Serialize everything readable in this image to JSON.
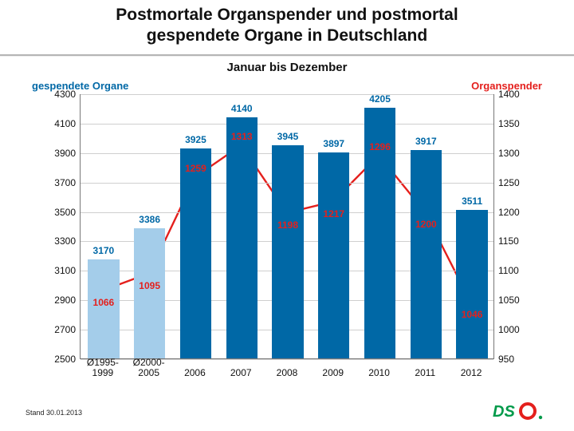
{
  "title": {
    "line1": "Postmortale Organspender und postmortal",
    "line2": "gespendete Organe in Deutschland"
  },
  "subtitle": "Januar bis Dezember",
  "footer": {
    "status": "Stand 30.01.2013"
  },
  "chart": {
    "type": "bar+line-dual-axis",
    "background_color": "#ffffff",
    "grid_color": "#cfcfcf",
    "axis_color": "#777777",
    "categories": [
      "Ø1995-\n1999",
      "Ø2000-\n2005",
      "2006",
      "2007",
      "2008",
      "2009",
      "2010",
      "2011",
      "2012"
    ],
    "bars": {
      "axis": "left",
      "values": [
        3170,
        3386,
        3925,
        4140,
        3945,
        3897,
        4205,
        3917,
        3511
      ],
      "colors": [
        "#a4cdea",
        "#a4cdea",
        "#0068a6",
        "#0068a6",
        "#0068a6",
        "#0068a6",
        "#0068a6",
        "#0068a6",
        "#0068a6"
      ],
      "label_colors": [
        "#0068a6",
        "#0068a6",
        "#0068a6",
        "#0068a6",
        "#0068a6",
        "#0068a6",
        "#0068a6",
        "#0068a6",
        "#0068a6"
      ],
      "bar_width_frac": 0.68,
      "label_fontsize": 12
    },
    "line": {
      "axis": "right",
      "values": [
        1066,
        1095,
        1259,
        1313,
        1198,
        1217,
        1296,
        1200,
        1046
      ],
      "color": "#e4201d",
      "width": 2.4,
      "marker": "square",
      "marker_size": 8,
      "label_fontsize": 12,
      "label_position": [
        "below",
        "below",
        "above",
        "above",
        "below",
        "below",
        "above",
        "below",
        "below"
      ]
    },
    "left_axis": {
      "label": "gespendete Organe",
      "label_color": "#0068a6",
      "min": 2500,
      "max": 4300,
      "ticks": [
        2500,
        2700,
        2900,
        3100,
        3300,
        3500,
        3700,
        3900,
        4100,
        4300
      ],
      "fontsize": 12
    },
    "right_axis": {
      "label": "Organspender",
      "label_color": "#e4201d",
      "min": 950,
      "max": 1400,
      "ticks": [
        950,
        1000,
        1050,
        1100,
        1150,
        1200,
        1250,
        1300,
        1350,
        1400
      ],
      "fontsize": 12
    }
  }
}
